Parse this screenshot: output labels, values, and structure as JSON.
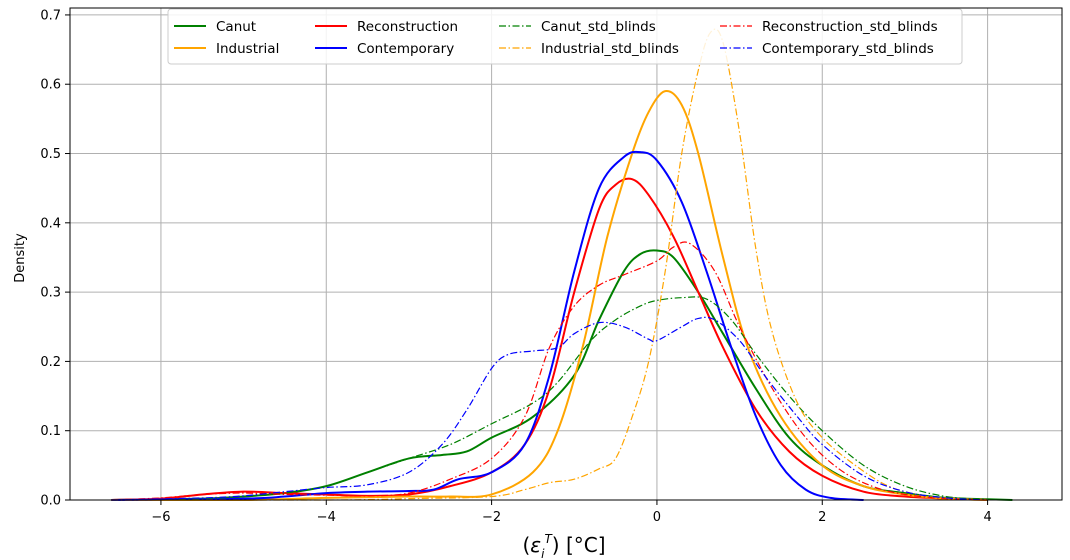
{
  "chart_data": {
    "type": "line",
    "title": "",
    "xlabel": "(ε_i^T) [°C]",
    "ylabel": "Density",
    "xlim": [
      -7.1,
      4.9
    ],
    "ylim": [
      0,
      0.71
    ],
    "xticks": [
      -6,
      -4,
      -2,
      0,
      2,
      4
    ],
    "xtick_labels": [
      "−6",
      "−4",
      "−2",
      "0",
      "2",
      "4"
    ],
    "yticks": [
      0.0,
      0.1,
      0.2,
      0.3,
      0.4,
      0.5,
      0.6,
      0.7
    ],
    "ytick_labels": [
      "0.0",
      "0.1",
      "0.2",
      "0.3",
      "0.4",
      "0.5",
      "0.6",
      "0.7"
    ],
    "grid": true,
    "legend_position": "top-center",
    "legend_columns": 4,
    "series": [
      {
        "name": "Canut",
        "color": "#008000",
        "dash": "solid",
        "points": [
          [
            -6.6,
            0
          ],
          [
            -5.5,
            0.002
          ],
          [
            -5,
            0.005
          ],
          [
            -4.5,
            0.01
          ],
          [
            -4,
            0.02
          ],
          [
            -3.5,
            0.04
          ],
          [
            -3,
            0.06
          ],
          [
            -2.6,
            0.065
          ],
          [
            -2.3,
            0.07
          ],
          [
            -2,
            0.09
          ],
          [
            -1.5,
            0.12
          ],
          [
            -1,
            0.18
          ],
          [
            -0.7,
            0.26
          ],
          [
            -0.4,
            0.33
          ],
          [
            -0.2,
            0.355
          ],
          [
            0,
            0.36
          ],
          [
            0.2,
            0.35
          ],
          [
            0.5,
            0.3
          ],
          [
            0.8,
            0.24
          ],
          [
            1.2,
            0.16
          ],
          [
            1.6,
            0.09
          ],
          [
            2,
            0.05
          ],
          [
            2.5,
            0.02
          ],
          [
            3,
            0.01
          ],
          [
            3.5,
            0.003
          ],
          [
            4,
            0.001
          ],
          [
            4.3,
            0
          ]
        ]
      },
      {
        "name": "Reconstruction",
        "color": "#ff0000",
        "dash": "solid",
        "points": [
          [
            -6.6,
            0
          ],
          [
            -6,
            0.002
          ],
          [
            -5.5,
            0.008
          ],
          [
            -5,
            0.012
          ],
          [
            -4.5,
            0.01
          ],
          [
            -4,
            0.008
          ],
          [
            -3.5,
            0.006
          ],
          [
            -3,
            0.008
          ],
          [
            -2.5,
            0.02
          ],
          [
            -2,
            0.04
          ],
          [
            -1.6,
            0.08
          ],
          [
            -1.3,
            0.16
          ],
          [
            -1,
            0.3
          ],
          [
            -0.7,
            0.42
          ],
          [
            -0.5,
            0.455
          ],
          [
            -0.3,
            0.463
          ],
          [
            -0.1,
            0.44
          ],
          [
            0.2,
            0.38
          ],
          [
            0.5,
            0.3
          ],
          [
            0.8,
            0.22
          ],
          [
            1.2,
            0.13
          ],
          [
            1.6,
            0.07
          ],
          [
            2,
            0.035
          ],
          [
            2.5,
            0.012
          ],
          [
            3,
            0.005
          ],
          [
            3.5,
            0.002
          ],
          [
            4,
            0
          ]
        ]
      },
      {
        "name": "Industrial",
        "color": "#ffa500",
        "dash": "solid",
        "points": [
          [
            -6.6,
            0
          ],
          [
            -5,
            0
          ],
          [
            -4,
            0.003
          ],
          [
            -3,
            0.005
          ],
          [
            -2.5,
            0.005
          ],
          [
            -2,
            0.008
          ],
          [
            -1.5,
            0.04
          ],
          [
            -1.2,
            0.1
          ],
          [
            -0.9,
            0.22
          ],
          [
            -0.6,
            0.38
          ],
          [
            -0.3,
            0.5
          ],
          [
            -0.1,
            0.56
          ],
          [
            0.1,
            0.59
          ],
          [
            0.3,
            0.57
          ],
          [
            0.5,
            0.5
          ],
          [
            0.8,
            0.35
          ],
          [
            1.1,
            0.22
          ],
          [
            1.5,
            0.12
          ],
          [
            2,
            0.05
          ],
          [
            2.5,
            0.02
          ],
          [
            3,
            0.008
          ],
          [
            3.5,
            0.002
          ],
          [
            4,
            0
          ]
        ]
      },
      {
        "name": "Contemporary",
        "color": "#0000ff",
        "dash": "solid",
        "points": [
          [
            -6.6,
            0
          ],
          [
            -5,
            0.002
          ],
          [
            -4.5,
            0.005
          ],
          [
            -4,
            0.01
          ],
          [
            -3.5,
            0.012
          ],
          [
            -3,
            0.013
          ],
          [
            -2.7,
            0.015
          ],
          [
            -2.4,
            0.03
          ],
          [
            -2,
            0.04
          ],
          [
            -1.6,
            0.08
          ],
          [
            -1.3,
            0.18
          ],
          [
            -1,
            0.33
          ],
          [
            -0.7,
            0.45
          ],
          [
            -0.4,
            0.495
          ],
          [
            -0.2,
            0.502
          ],
          [
            0,
            0.49
          ],
          [
            0.3,
            0.43
          ],
          [
            0.6,
            0.33
          ],
          [
            0.9,
            0.22
          ],
          [
            1.2,
            0.12
          ],
          [
            1.5,
            0.05
          ],
          [
            1.8,
            0.015
          ],
          [
            2.1,
            0.003
          ],
          [
            2.5,
            0
          ]
        ]
      },
      {
        "name": "Canut_std_blinds",
        "color": "#008000",
        "dash": "dashdot",
        "points": [
          [
            -6.6,
            0
          ],
          [
            -5.5,
            0.002
          ],
          [
            -5,
            0.005
          ],
          [
            -4.5,
            0.01
          ],
          [
            -4,
            0.02
          ],
          [
            -3.5,
            0.04
          ],
          [
            -3,
            0.06
          ],
          [
            -2.5,
            0.08
          ],
          [
            -2,
            0.11
          ],
          [
            -1.5,
            0.14
          ],
          [
            -1.2,
            0.17
          ],
          [
            -0.8,
            0.23
          ],
          [
            -0.5,
            0.26
          ],
          [
            -0.2,
            0.28
          ],
          [
            0,
            0.288
          ],
          [
            0.3,
            0.292
          ],
          [
            0.6,
            0.29
          ],
          [
            0.9,
            0.26
          ],
          [
            1.2,
            0.21
          ],
          [
            1.6,
            0.15
          ],
          [
            2,
            0.1
          ],
          [
            2.5,
            0.05
          ],
          [
            3,
            0.02
          ],
          [
            3.5,
            0.005
          ],
          [
            4,
            0.001
          ],
          [
            4.3,
            0
          ]
        ]
      },
      {
        "name": "Reconstruction_std_blinds",
        "color": "#ff0000",
        "dash": "dashdot",
        "points": [
          [
            -6.6,
            0
          ],
          [
            -6,
            0.003
          ],
          [
            -5.5,
            0.008
          ],
          [
            -5,
            0.01
          ],
          [
            -4.5,
            0.008
          ],
          [
            -4,
            0.007
          ],
          [
            -3.5,
            0.006
          ],
          [
            -3,
            0.01
          ],
          [
            -2.5,
            0.03
          ],
          [
            -2,
            0.06
          ],
          [
            -1.6,
            0.12
          ],
          [
            -1.3,
            0.22
          ],
          [
            -1,
            0.28
          ],
          [
            -0.7,
            0.31
          ],
          [
            -0.4,
            0.325
          ],
          [
            0,
            0.345
          ],
          [
            0.2,
            0.365
          ],
          [
            0.4,
            0.37
          ],
          [
            0.7,
            0.33
          ],
          [
            1,
            0.25
          ],
          [
            1.4,
            0.16
          ],
          [
            1.8,
            0.09
          ],
          [
            2.2,
            0.045
          ],
          [
            2.6,
            0.02
          ],
          [
            3,
            0.008
          ],
          [
            3.5,
            0.002
          ],
          [
            4,
            0
          ]
        ]
      },
      {
        "name": "Industrial_std_blinds",
        "color": "#ffa500",
        "dash": "dashdot",
        "points": [
          [
            -6.6,
            0
          ],
          [
            -4,
            0
          ],
          [
            -3,
            0.002
          ],
          [
            -2,
            0.005
          ],
          [
            -1.6,
            0.015
          ],
          [
            -1.3,
            0.025
          ],
          [
            -1,
            0.03
          ],
          [
            -0.7,
            0.045
          ],
          [
            -0.5,
            0.06
          ],
          [
            -0.3,
            0.12
          ],
          [
            -0.1,
            0.2
          ],
          [
            0.1,
            0.33
          ],
          [
            0.3,
            0.5
          ],
          [
            0.5,
            0.62
          ],
          [
            0.65,
            0.675
          ],
          [
            0.8,
            0.66
          ],
          [
            1,
            0.53
          ],
          [
            1.2,
            0.36
          ],
          [
            1.4,
            0.24
          ],
          [
            1.7,
            0.14
          ],
          [
            2,
            0.09
          ],
          [
            2.4,
            0.05
          ],
          [
            2.8,
            0.02
          ],
          [
            3.2,
            0.007
          ],
          [
            3.6,
            0.002
          ],
          [
            4,
            0
          ]
        ]
      },
      {
        "name": "Contemporary_std_blinds",
        "color": "#0000ff",
        "dash": "dashdot",
        "points": [
          [
            -6.6,
            0
          ],
          [
            -5.5,
            0.003
          ],
          [
            -5,
            0.006
          ],
          [
            -4.5,
            0.012
          ],
          [
            -4,
            0.018
          ],
          [
            -3.5,
            0.022
          ],
          [
            -3,
            0.04
          ],
          [
            -2.6,
            0.08
          ],
          [
            -2.3,
            0.13
          ],
          [
            -2,
            0.19
          ],
          [
            -1.8,
            0.21
          ],
          [
            -1.5,
            0.215
          ],
          [
            -1.2,
            0.22
          ],
          [
            -1,
            0.24
          ],
          [
            -0.7,
            0.256
          ],
          [
            -0.4,
            0.25
          ],
          [
            -0.1,
            0.232
          ],
          [
            0,
            0.23
          ],
          [
            0.3,
            0.25
          ],
          [
            0.5,
            0.262
          ],
          [
            0.7,
            0.26
          ],
          [
            1,
            0.23
          ],
          [
            1.3,
            0.18
          ],
          [
            1.7,
            0.12
          ],
          [
            2,
            0.08
          ],
          [
            2.5,
            0.035
          ],
          [
            3,
            0.012
          ],
          [
            3.5,
            0.003
          ],
          [
            4,
            0
          ]
        ]
      }
    ]
  },
  "legend": {
    "entries": [
      {
        "label": "Canut",
        "color": "#008000",
        "dash": "solid"
      },
      {
        "label": "Industrial",
        "color": "#ffa500",
        "dash": "solid"
      },
      {
        "label": "Reconstruction",
        "color": "#ff0000",
        "dash": "solid"
      },
      {
        "label": "Contemporary",
        "color": "#0000ff",
        "dash": "solid"
      },
      {
        "label": "Canut_std_blinds",
        "color": "#008000",
        "dash": "dashdot"
      },
      {
        "label": "Industrial_std_blinds",
        "color": "#ffa500",
        "dash": "dashdot"
      },
      {
        "label": "Reconstruction_std_blinds",
        "color": "#ff0000",
        "dash": "dashdot"
      },
      {
        "label": "Contemporary_std_blinds",
        "color": "#0000ff",
        "dash": "dashdot"
      }
    ]
  }
}
